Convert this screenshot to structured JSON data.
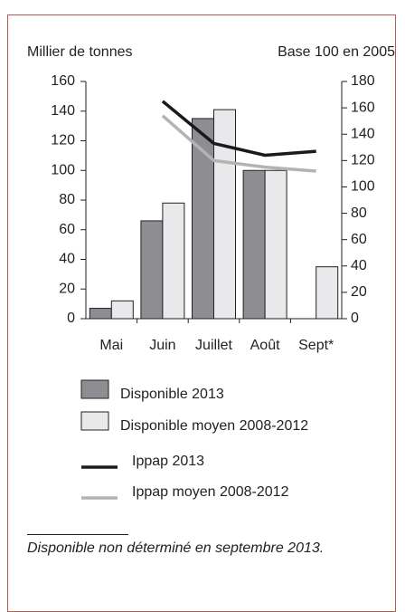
{
  "chart_data": {
    "type": "bar",
    "ylabel": "Millier de tonnes",
    "y2label": "Base 100 en 2005",
    "categories": [
      "Mai",
      "Juin",
      "Juillet",
      "Août",
      "Sept*"
    ],
    "series": [
      {
        "name": "Disponible 2013",
        "color": "#8e8e92",
        "values": [
          7,
          66,
          135,
          100,
          null
        ]
      },
      {
        "name": "Disponible moyen 2008-2012",
        "color": "#e9e9eb",
        "values": [
          12,
          78,
          141,
          100,
          35
        ]
      },
      {
        "name": "Ippap 2013",
        "color": "#1a1a1a",
        "type": "line",
        "axis": "y2",
        "values": [
          null,
          165,
          133,
          124,
          127
        ]
      },
      {
        "name": "Ippap moyen 2008-2012",
        "color": "#b3b3b3",
        "type": "line",
        "axis": "y2",
        "values": [
          null,
          154,
          120,
          115,
          112
        ]
      }
    ],
    "ylim": [
      0,
      160
    ],
    "yticks": [
      0,
      20,
      40,
      60,
      80,
      100,
      120,
      140,
      160
    ],
    "y2lim": [
      0,
      180
    ],
    "y2ticks": [
      0,
      20,
      40,
      60,
      80,
      100,
      120,
      140,
      160,
      180
    ],
    "footnote": "Disponible non déterminé en septembre 2013."
  }
}
